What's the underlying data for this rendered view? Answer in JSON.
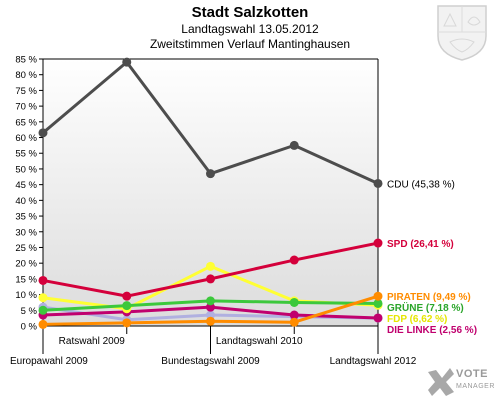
{
  "header": {
    "title": "Stadt Salzkotten",
    "subtitle": "Landtagswahl 13.05.2012",
    "subtitle2": "Zweitstimmen Verlauf Mantinghausen"
  },
  "branding": {
    "crest_icon": "nrw-crest-icon",
    "logo_icon": "vote-manager-logo-icon",
    "logo_text": "VOTE",
    "logo_subtext": "MANAGER"
  },
  "chart_data": {
    "type": "line",
    "categories": [
      "Europawahl 2009",
      "Ratswahl 2009",
      "Bundestagswahl 2009",
      "Landtagswahl 2010",
      "Landtagswahl 2012"
    ],
    "ylim": [
      0,
      85
    ],
    "ytick_step": 5,
    "y_unit": "%",
    "grid": false,
    "series": [
      {
        "name": "CDU",
        "label": "CDU (45,38 %)",
        "color": "#4d4d4d",
        "label_color": "#000000",
        "values": [
          61.5,
          84,
          48.5,
          57.5,
          45.38
        ]
      },
      {
        "name": "SPD",
        "label": "SPD (26,41 %)",
        "color": "#d4003b",
        "label_color": "#d4003b",
        "values": [
          14.5,
          9.5,
          15,
          21,
          26.41
        ]
      },
      {
        "name": "PIRATEN",
        "label": "PIRATEN (9,49 %)",
        "color": "#ff8c00",
        "label_color": "#ff8c00",
        "values": [
          0.5,
          1,
          1.5,
          1.2,
          9.49
        ]
      },
      {
        "name": "GRÜNE",
        "label": "GRÜNE (7,18 %)",
        "color": "#3cc83c",
        "label_color": "#2aa52a",
        "values": [
          5,
          6.5,
          8,
          7.5,
          7.18
        ]
      },
      {
        "name": "FDP",
        "label": "FDP (6,62 %)",
        "color": "#ffff33",
        "label_color": "#e6e600",
        "values": [
          9,
          5.5,
          19,
          8,
          6.62
        ]
      },
      {
        "name": "DIE LINKE",
        "label": "DIE LINKE (2,56 %)",
        "color": "#c0006e",
        "label_color": "#c0006e",
        "values": [
          3.5,
          4.5,
          6,
          3.5,
          2.56
        ]
      },
      {
        "name": "Sonstige",
        "label": "",
        "color": "#b0b0e0",
        "label_color": "#b0b0e0",
        "values": [
          6,
          2,
          3.5,
          3,
          2.5
        ]
      }
    ]
  }
}
